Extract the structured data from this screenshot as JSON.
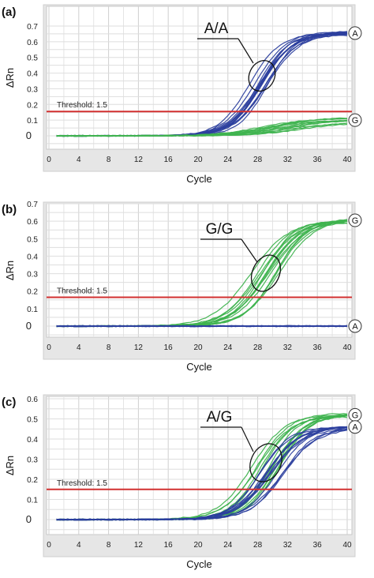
{
  "chart_data": [
    {
      "type": "line",
      "panel_label": "(a)",
      "genotype": "A/A",
      "ylabel": "ΔRn",
      "xlabel": "Cycle",
      "xlim": [
        0,
        42
      ],
      "ylim": [
        -0.1,
        0.72
      ],
      "x_ticks": [
        "0",
        "4",
        "8",
        "12",
        "16",
        "20",
        "24",
        "28",
        "32",
        "36",
        "40"
      ],
      "y_ticks": [
        "0",
        "0.1",
        "0.2",
        "0.3",
        "0.4",
        "0.5",
        "0.6",
        "0.7"
      ],
      "threshold": {
        "label": "Threshold: 1.5",
        "value": 0.155
      },
      "grid": true,
      "series": [
        {
          "name": "A",
          "color": "#2c3f9e",
          "curves": 14,
          "plateau": 0.655,
          "midpoint_cycle": 28.3,
          "spread": 1.5,
          "slope": 2.1
        },
        {
          "name": "G",
          "color": "#3fb34f",
          "curves": 12,
          "plateau": 0.1,
          "midpoint_cycle": 31,
          "spread": 3.0,
          "slope": 3.0
        }
      ]
    },
    {
      "type": "line",
      "panel_label": "(b)",
      "genotype": "G/G",
      "ylabel": "ΔRn",
      "xlabel": "Cycle",
      "xlim": [
        0,
        42
      ],
      "ylim": [
        -0.1,
        0.72
      ],
      "x_ticks": [
        "0",
        "4",
        "8",
        "12",
        "16",
        "20",
        "24",
        "28",
        "32",
        "36",
        "40"
      ],
      "y_ticks": [
        "0",
        "0.1",
        "0.2",
        "0.3",
        "0.4",
        "0.5",
        "0.6",
        "0.7"
      ],
      "threshold": {
        "label": "Threshold: 1.5",
        "value": 0.165
      },
      "grid": true,
      "series": [
        {
          "name": "G",
          "color": "#3fb34f",
          "curves": 14,
          "plateau": 0.605,
          "midpoint_cycle": 29.0,
          "spread": 2.0,
          "slope": 2.3
        },
        {
          "name": "A",
          "color": "#2c3f9e",
          "curves": 12,
          "plateau": 0.0,
          "midpoint_cycle": 30,
          "spread": 0,
          "slope": 3.0
        }
      ]
    },
    {
      "type": "line",
      "panel_label": "(c)",
      "genotype": "A/G",
      "ylabel": "ΔRn",
      "xlabel": "Cycle",
      "xlim": [
        0,
        42
      ],
      "ylim": [
        -0.1,
        0.62
      ],
      "x_ticks": [
        "0",
        "4",
        "8",
        "12",
        "16",
        "20",
        "24",
        "28",
        "32",
        "36",
        "40"
      ],
      "y_ticks": [
        "0",
        "0.1",
        "0.2",
        "0.3",
        "0.4",
        "0.5",
        "0.6"
      ],
      "threshold": {
        "label": "Threshold: 1.5",
        "value": 0.15
      },
      "grid": true,
      "series": [
        {
          "name": "G",
          "color": "#3fb34f",
          "curves": 12,
          "plateau": 0.52,
          "midpoint_cycle": 29.0,
          "spread": 2.0,
          "slope": 2.1
        },
        {
          "name": "A",
          "color": "#2c3f9e",
          "curves": 12,
          "plateau": 0.46,
          "midpoint_cycle": 29.8,
          "spread": 1.8,
          "slope": 2.2
        }
      ]
    }
  ]
}
